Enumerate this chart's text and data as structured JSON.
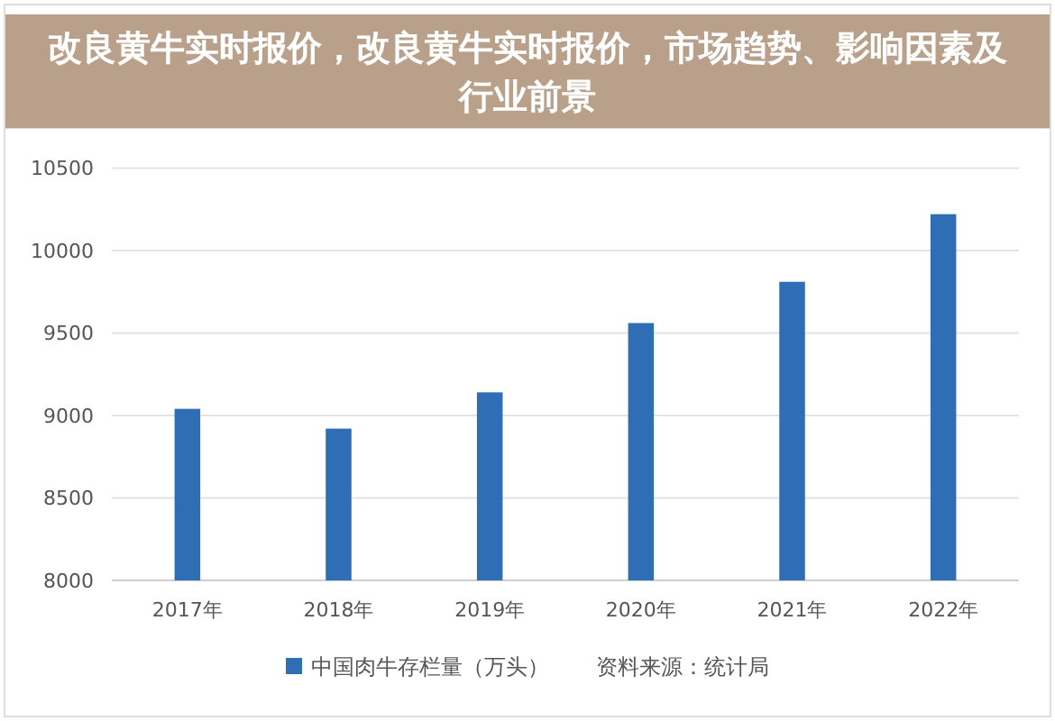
{
  "chart_data": {
    "type": "bar",
    "title": "改良黄牛实时报价，改良黄牛实时报价，市场趋势、影响因素及行业前景",
    "categories": [
      "2017年",
      "2018年",
      "2019年",
      "2020年",
      "2021年",
      "2022年"
    ],
    "series": [
      {
        "name": "中国肉牛存栏量（万头）",
        "color": "#2f6db5",
        "values": [
          9040,
          8920,
          9140,
          9560,
          9810,
          10220
        ]
      }
    ],
    "ylim": [
      8000,
      10500
    ],
    "yticks": [
      8000,
      8500,
      9000,
      9500,
      10000,
      10500
    ],
    "grid": "y",
    "legend": "bottom",
    "annotations": [
      "资料来源：统计局"
    ]
  }
}
